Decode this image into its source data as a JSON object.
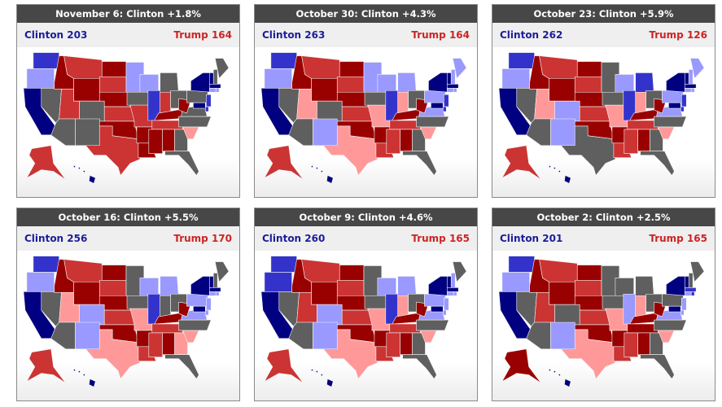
{
  "panels": [
    {
      "title": "November 6: Clinton +1.8%",
      "clinton": "Clinton 203",
      "trump": "Trump 164",
      "states": {
        "WA": "#3333cc",
        "OR": "#9999ff",
        "CA": "#000080",
        "NV": "#5f5f5f",
        "ID": "#990000",
        "MT": "#cc3333",
        "WY": "#990000",
        "UT": "#cc3333",
        "CO": "#5f5f5f",
        "AZ": "#5f5f5f",
        "NM": "#5f5f5f",
        "ND": "#990000",
        "SD": "#cc3333",
        "NE": "#990000",
        "KS": "#cc3333",
        "OK": "#990000",
        "TX": "#cc3333",
        "MN": "#9999ff",
        "IA": "#5f5f5f",
        "MO": "#cc3333",
        "AR": "#990000",
        "LA": "#990000",
        "WI": "#9999ff",
        "IL": "#3333cc",
        "MI": "#5f5f5f",
        "IN": "#cc3333",
        "OH": "#5f5f5f",
        "KY": "#990000",
        "TN": "#cc3333",
        "MS": "#990000",
        "AL": "#990000",
        "GA": "#5f5f5f",
        "FL": "#5f5f5f",
        "SC": "#ff9999",
        "NC": "#5f5f5f",
        "VA": "#5f5f5f",
        "WV": "#990000",
        "PA": "#5f5f5f",
        "NY": "#000080",
        "VT": "#000080",
        "NH": "#5f5f5f",
        "ME": "#5f5f5f",
        "MA": "#000080",
        "CT": "#9999ff",
        "RI": "#9999ff",
        "NJ": "#3333cc",
        "DE": "#3333cc",
        "MD": "#000080",
        "AK": "#cc3333",
        "HI": "#000080"
      }
    },
    {
      "title": "October 30: Clinton +4.3%",
      "clinton": "Clinton 263",
      "trump": "Trump 164",
      "states": {
        "WA": "#3333cc",
        "OR": "#9999ff",
        "CA": "#000080",
        "NV": "#5f5f5f",
        "ID": "#990000",
        "MT": "#cc3333",
        "WY": "#990000",
        "UT": "#ff9999",
        "CO": "#5f5f5f",
        "AZ": "#5f5f5f",
        "NM": "#9999ff",
        "ND": "#990000",
        "SD": "#cc3333",
        "NE": "#990000",
        "KS": "#cc3333",
        "OK": "#990000",
        "TX": "#ff9999",
        "MN": "#9999ff",
        "IA": "#5f5f5f",
        "MO": "#ff9999",
        "AR": "#990000",
        "LA": "#cc3333",
        "WI": "#9999ff",
        "IL": "#3333cc",
        "MI": "#9999ff",
        "IN": "#ff9999",
        "OH": "#5f5f5f",
        "KY": "#990000",
        "TN": "#cc3333",
        "MS": "#cc3333",
        "AL": "#990000",
        "GA": "#5f5f5f",
        "FL": "#5f5f5f",
        "SC": "#ff9999",
        "NC": "#5f5f5f",
        "VA": "#9999ff",
        "WV": "#990000",
        "PA": "#9999ff",
        "NY": "#000080",
        "VT": "#000080",
        "NH": "#9999ff",
        "ME": "#9999ff",
        "MA": "#000080",
        "CT": "#9999ff",
        "RI": "#9999ff",
        "NJ": "#3333cc",
        "DE": "#3333cc",
        "MD": "#000080",
        "AK": "#cc3333",
        "HI": "#000080"
      }
    },
    {
      "title": "October 23: Clinton +5.9%",
      "clinton": "Clinton 262",
      "trump": "Trump 126",
      "states": {
        "WA": "#3333cc",
        "OR": "#9999ff",
        "CA": "#000080",
        "NV": "#5f5f5f",
        "ID": "#990000",
        "MT": "#cc3333",
        "WY": "#990000",
        "UT": "#ff9999",
        "CO": "#9999ff",
        "AZ": "#5f5f5f",
        "NM": "#9999ff",
        "ND": "#990000",
        "SD": "#cc3333",
        "NE": "#990000",
        "KS": "#cc3333",
        "OK": "#990000",
        "TX": "#5f5f5f",
        "MN": "#5f5f5f",
        "IA": "#5f5f5f",
        "MO": "#ff9999",
        "AR": "#990000",
        "LA": "#cc3333",
        "WI": "#9999ff",
        "IL": "#3333cc",
        "MI": "#3333cc",
        "IN": "#ff9999",
        "OH": "#5f5f5f",
        "KY": "#990000",
        "TN": "#cc3333",
        "MS": "#cc3333",
        "AL": "#990000",
        "GA": "#5f5f5f",
        "FL": "#5f5f5f",
        "SC": "#ff9999",
        "NC": "#5f5f5f",
        "VA": "#9999ff",
        "WV": "#990000",
        "PA": "#9999ff",
        "NY": "#000080",
        "VT": "#000080",
        "NH": "#9999ff",
        "ME": "#9999ff",
        "MA": "#000080",
        "CT": "#9999ff",
        "RI": "#9999ff",
        "NJ": "#3333cc",
        "DE": "#3333cc",
        "MD": "#000080",
        "AK": "#cc3333",
        "HI": "#000080"
      }
    },
    {
      "title": "October 16: Clinton +5.5%",
      "clinton": "Clinton 256",
      "trump": "Trump 170",
      "states": {
        "WA": "#3333cc",
        "OR": "#9999ff",
        "CA": "#000080",
        "NV": "#5f5f5f",
        "ID": "#990000",
        "MT": "#cc3333",
        "WY": "#990000",
        "UT": "#ff9999",
        "CO": "#9999ff",
        "AZ": "#5f5f5f",
        "NM": "#9999ff",
        "ND": "#990000",
        "SD": "#cc3333",
        "NE": "#990000",
        "KS": "#cc3333",
        "OK": "#990000",
        "TX": "#ff9999",
        "MN": "#5f5f5f",
        "IA": "#5f5f5f",
        "MO": "#ff9999",
        "AR": "#990000",
        "LA": "#cc3333",
        "WI": "#9999ff",
        "IL": "#3333cc",
        "MI": "#9999ff",
        "IN": "#5f5f5f",
        "OH": "#5f5f5f",
        "KY": "#990000",
        "TN": "#cc3333",
        "MS": "#cc3333",
        "AL": "#990000",
        "GA": "#ff9999",
        "FL": "#5f5f5f",
        "SC": "#ff9999",
        "NC": "#5f5f5f",
        "VA": "#9999ff",
        "WV": "#990000",
        "PA": "#9999ff",
        "NY": "#000080",
        "VT": "#000080",
        "NH": "#5f5f5f",
        "ME": "#5f5f5f",
        "MA": "#000080",
        "CT": "#9999ff",
        "RI": "#9999ff",
        "NJ": "#9999ff",
        "DE": "#9999ff",
        "MD": "#000080",
        "AK": "#cc3333",
        "HI": "#000080"
      }
    },
    {
      "title": "October 9: Clinton +4.6%",
      "clinton": "Clinton 260",
      "trump": "Trump 165",
      "states": {
        "WA": "#3333cc",
        "OR": "#3333cc",
        "CA": "#000080",
        "NV": "#5f5f5f",
        "ID": "#990000",
        "MT": "#cc3333",
        "WY": "#990000",
        "UT": "#cc3333",
        "CO": "#9999ff",
        "AZ": "#5f5f5f",
        "NM": "#9999ff",
        "ND": "#990000",
        "SD": "#cc3333",
        "NE": "#990000",
        "KS": "#cc3333",
        "OK": "#990000",
        "TX": "#ff9999",
        "MN": "#5f5f5f",
        "IA": "#5f5f5f",
        "MO": "#ff9999",
        "AR": "#990000",
        "LA": "#cc3333",
        "WI": "#9999ff",
        "IL": "#3333cc",
        "MI": "#9999ff",
        "IN": "#ff9999",
        "OH": "#5f5f5f",
        "KY": "#990000",
        "TN": "#cc3333",
        "MS": "#cc3333",
        "AL": "#990000",
        "GA": "#5f5f5f",
        "FL": "#5f5f5f",
        "SC": "#ff9999",
        "NC": "#5f5f5f",
        "VA": "#9999ff",
        "WV": "#990000",
        "PA": "#9999ff",
        "NY": "#000080",
        "VT": "#000080",
        "NH": "#9999ff",
        "ME": "#5f5f5f",
        "MA": "#000080",
        "CT": "#9999ff",
        "RI": "#9999ff",
        "NJ": "#9999ff",
        "DE": "#9999ff",
        "MD": "#000080",
        "AK": "#cc3333",
        "HI": "#000080"
      }
    },
    {
      "title": "October 2: Clinton +2.5%",
      "clinton": "Clinton 201",
      "trump": "Trump 165",
      "states": {
        "WA": "#3333cc",
        "OR": "#9999ff",
        "CA": "#000080",
        "NV": "#5f5f5f",
        "ID": "#990000",
        "MT": "#cc3333",
        "WY": "#990000",
        "UT": "#cc3333",
        "CO": "#5f5f5f",
        "AZ": "#5f5f5f",
        "NM": "#9999ff",
        "ND": "#990000",
        "SD": "#cc3333",
        "NE": "#990000",
        "KS": "#cc3333",
        "OK": "#990000",
        "TX": "#ff9999",
        "MN": "#5f5f5f",
        "IA": "#5f5f5f",
        "MO": "#ff9999",
        "AR": "#990000",
        "LA": "#cc3333",
        "WI": "#5f5f5f",
        "IL": "#9999ff",
        "MI": "#5f5f5f",
        "IN": "#ff9999",
        "OH": "#5f5f5f",
        "KY": "#990000",
        "TN": "#990000",
        "MS": "#cc3333",
        "AL": "#990000",
        "GA": "#5f5f5f",
        "FL": "#5f5f5f",
        "SC": "#ff9999",
        "NC": "#5f5f5f",
        "VA": "#9999ff",
        "WV": "#990000",
        "PA": "#5f5f5f",
        "NY": "#000080",
        "VT": "#000080",
        "NH": "#5f5f5f",
        "ME": "#5f5f5f",
        "MA": "#3333cc",
        "CT": "#9999ff",
        "RI": "#3333cc",
        "NJ": "#9999ff",
        "DE": "#9999ff",
        "MD": "#000080",
        "AK": "#990000",
        "HI": "#000080"
      }
    }
  ]
}
